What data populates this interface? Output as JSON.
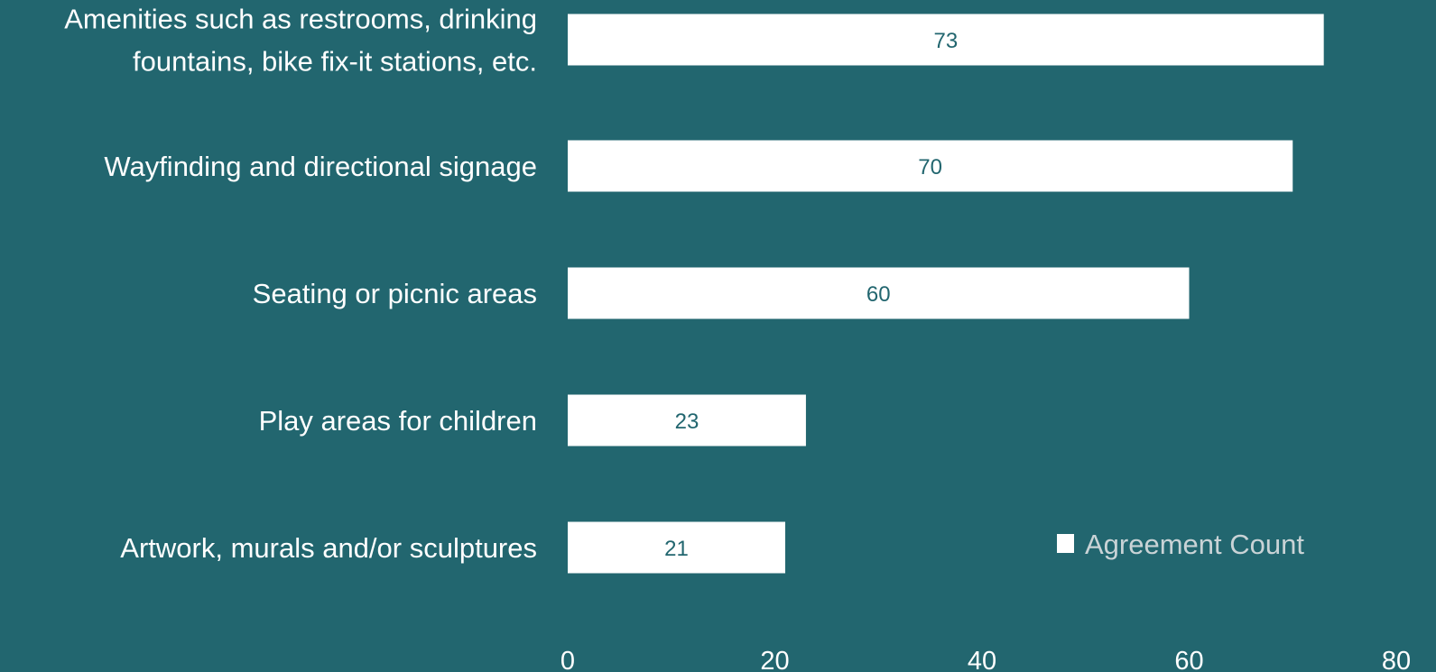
{
  "chart_data": {
    "type": "bar",
    "orientation": "horizontal",
    "categories": [
      [
        "Amenities such as restrooms, drinking",
        "fountains, bike fix-it stations, etc."
      ],
      [
        "Wayfinding and directional signage"
      ],
      [
        "Seating or picnic areas"
      ],
      [
        "Play areas for children"
      ],
      [
        "Artwork, murals and/or sculptures"
      ]
    ],
    "series": [
      {
        "name": "Agreement Count",
        "values": [
          73,
          70,
          60,
          23,
          21
        ]
      }
    ],
    "xlim": [
      0,
      80
    ],
    "xticks": [
      0,
      20,
      40,
      60,
      80
    ],
    "grid": false,
    "legend_position": "bottom-right",
    "title": "",
    "xlabel": "",
    "ylabel": ""
  },
  "colors": {
    "background": "#22666f",
    "bar": "#ffffff",
    "data_label": "#22666f",
    "text": "#ffffff",
    "legend_text": "#c9d3d6"
  }
}
